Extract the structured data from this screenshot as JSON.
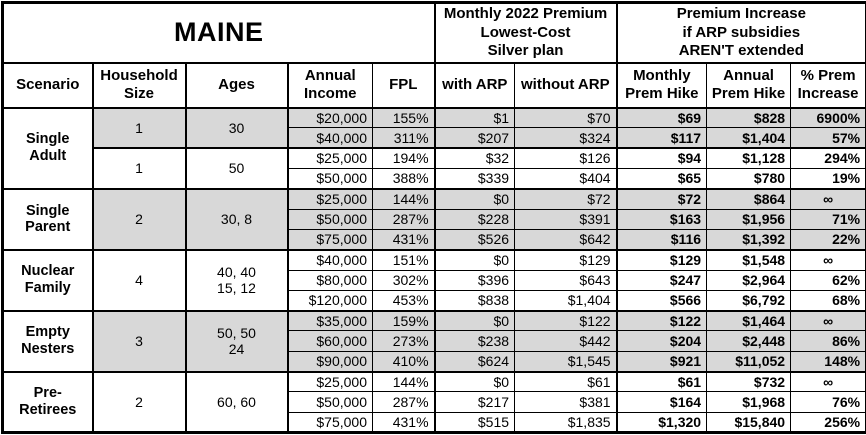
{
  "table": {
    "title": "MAINE",
    "section_headers": {
      "premium": "Monthly 2022 Premium\nLowest-Cost\nSilver plan",
      "increase": "Premium Increase\nif ARP subsidies\nAREN'T extended"
    },
    "columns": [
      "Scenario",
      "Household\nSize",
      "Ages",
      "Annual\nIncome",
      "FPL",
      "with ARP",
      "without ARP",
      "Monthly\nPrem Hike",
      "Annual\nPrem Hike",
      "% Prem\nIncrease"
    ],
    "colors": {
      "shaded_row": "#d8d8d8",
      "border": "#000000",
      "background": "#ffffff"
    },
    "groups": [
      {
        "scenario": "Single\nAdult",
        "subgroups": [
          {
            "household_size": "1",
            "ages": "30",
            "shaded": true,
            "rows": [
              {
                "income": "$20,000",
                "fpl": "155%",
                "with_arp": "$1",
                "without_arp": "$70",
                "monthly_hike": "$69",
                "annual_hike": "$828",
                "pct_increase": "6900%"
              },
              {
                "income": "$40,000",
                "fpl": "311%",
                "with_arp": "$207",
                "without_arp": "$324",
                "monthly_hike": "$117",
                "annual_hike": "$1,404",
                "pct_increase": "57%"
              }
            ]
          },
          {
            "household_size": "1",
            "ages": "50",
            "shaded": false,
            "rows": [
              {
                "income": "$25,000",
                "fpl": "194%",
                "with_arp": "$32",
                "without_arp": "$126",
                "monthly_hike": "$94",
                "annual_hike": "$1,128",
                "pct_increase": "294%"
              },
              {
                "income": "$50,000",
                "fpl": "388%",
                "with_arp": "$339",
                "without_arp": "$404",
                "monthly_hike": "$65",
                "annual_hike": "$780",
                "pct_increase": "19%"
              }
            ]
          }
        ]
      },
      {
        "scenario": "Single\nParent",
        "subgroups": [
          {
            "household_size": "2",
            "ages": "30, 8",
            "shaded": true,
            "rows": [
              {
                "income": "$25,000",
                "fpl": "144%",
                "with_arp": "$0",
                "without_arp": "$72",
                "monthly_hike": "$72",
                "annual_hike": "$864",
                "pct_increase": "∞"
              },
              {
                "income": "$50,000",
                "fpl": "287%",
                "with_arp": "$228",
                "without_arp": "$391",
                "monthly_hike": "$163",
                "annual_hike": "$1,956",
                "pct_increase": "71%"
              },
              {
                "income": "$75,000",
                "fpl": "431%",
                "with_arp": "$526",
                "without_arp": "$642",
                "monthly_hike": "$116",
                "annual_hike": "$1,392",
                "pct_increase": "22%"
              }
            ]
          }
        ]
      },
      {
        "scenario": "Nuclear\nFamily",
        "subgroups": [
          {
            "household_size": "4",
            "ages": "40, 40\n15, 12",
            "shaded": false,
            "rows": [
              {
                "income": "$40,000",
                "fpl": "151%",
                "with_arp": "$0",
                "without_arp": "$129",
                "monthly_hike": "$129",
                "annual_hike": "$1,548",
                "pct_increase": "∞"
              },
              {
                "income": "$80,000",
                "fpl": "302%",
                "with_arp": "$396",
                "without_arp": "$643",
                "monthly_hike": "$247",
                "annual_hike": "$2,964",
                "pct_increase": "62%"
              },
              {
                "income": "$120,000",
                "fpl": "453%",
                "with_arp": "$838",
                "without_arp": "$1,404",
                "monthly_hike": "$566",
                "annual_hike": "$6,792",
                "pct_increase": "68%"
              }
            ]
          }
        ]
      },
      {
        "scenario": "Empty\nNesters",
        "subgroups": [
          {
            "household_size": "3",
            "ages": "50, 50\n24",
            "shaded": true,
            "rows": [
              {
                "income": "$35,000",
                "fpl": "159%",
                "with_arp": "$0",
                "without_arp": "$122",
                "monthly_hike": "$122",
                "annual_hike": "$1,464",
                "pct_increase": "∞"
              },
              {
                "income": "$60,000",
                "fpl": "273%",
                "with_arp": "$238",
                "without_arp": "$442",
                "monthly_hike": "$204",
                "annual_hike": "$2,448",
                "pct_increase": "86%"
              },
              {
                "income": "$90,000",
                "fpl": "410%",
                "with_arp": "$624",
                "without_arp": "$1,545",
                "monthly_hike": "$921",
                "annual_hike": "$11,052",
                "pct_increase": "148%"
              }
            ]
          }
        ]
      },
      {
        "scenario": "Pre-\nRetirees",
        "subgroups": [
          {
            "household_size": "2",
            "ages": "60, 60",
            "shaded": false,
            "rows": [
              {
                "income": "$25,000",
                "fpl": "144%",
                "with_arp": "$0",
                "without_arp": "$61",
                "monthly_hike": "$61",
                "annual_hike": "$732",
                "pct_increase": "∞"
              },
              {
                "income": "$50,000",
                "fpl": "287%",
                "with_arp": "$217",
                "without_arp": "$381",
                "monthly_hike": "$164",
                "annual_hike": "$1,968",
                "pct_increase": "76%"
              },
              {
                "income": "$75,000",
                "fpl": "431%",
                "with_arp": "$515",
                "without_arp": "$1,835",
                "monthly_hike": "$1,320",
                "annual_hike": "$15,840",
                "pct_increase": "256%"
              }
            ]
          }
        ]
      }
    ]
  }
}
